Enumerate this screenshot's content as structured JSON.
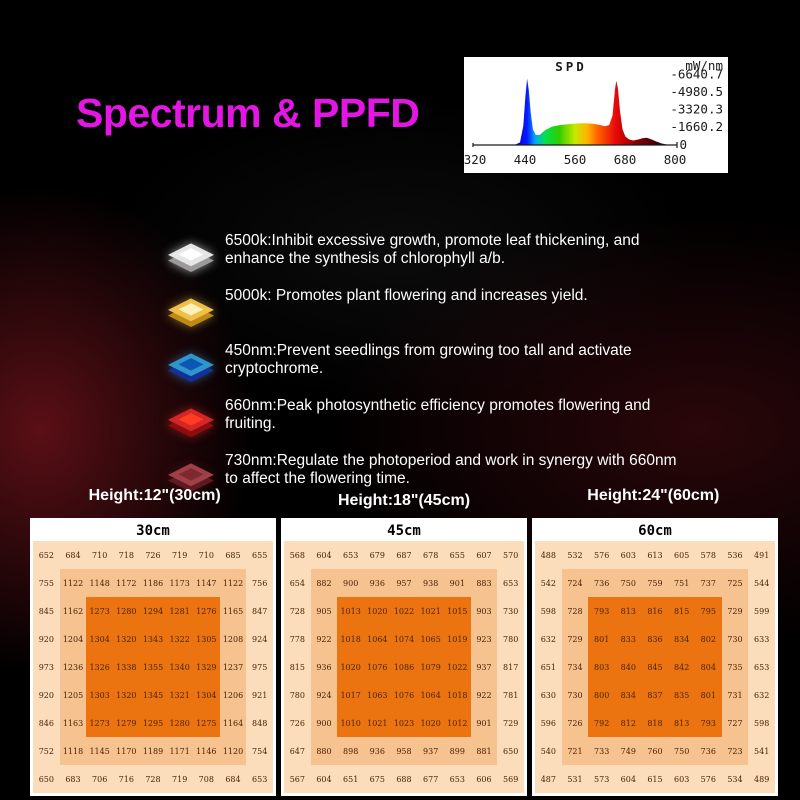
{
  "page": {
    "title": "Spectrum & PPFD",
    "title_color": "#e316e3",
    "background_color": "#000000",
    "glow_color": "#961a24"
  },
  "spd_chart": {
    "type": "area",
    "title": "SPD",
    "unit_label": "mW/nm",
    "y_tick_labels": [
      "-6640.7",
      "-4980.5",
      "-3320.3",
      "-1660.2",
      "0"
    ],
    "x_tick_labels": [
      "320",
      "440",
      "560",
      "680",
      "800"
    ],
    "x_range_nm": [
      320,
      800
    ],
    "y_range_mw_nm": [
      0,
      6640.7
    ],
    "curve_points_nm_mw": [
      [
        415,
        0
      ],
      [
        428,
        250
      ],
      [
        436,
        1800
      ],
      [
        441,
        4600
      ],
      [
        445,
        6300
      ],
      [
        449,
        5200
      ],
      [
        454,
        3000
      ],
      [
        459,
        1500
      ],
      [
        466,
        950
      ],
      [
        475,
        950
      ],
      [
        488,
        1400
      ],
      [
        505,
        1750
      ],
      [
        525,
        1900
      ],
      [
        545,
        1980
      ],
      [
        565,
        2050
      ],
      [
        585,
        2060
      ],
      [
        605,
        2000
      ],
      [
        620,
        1900
      ],
      [
        632,
        1780
      ],
      [
        642,
        1900
      ],
      [
        650,
        2800
      ],
      [
        656,
        5300
      ],
      [
        659,
        6100
      ],
      [
        663,
        5400
      ],
      [
        668,
        3200
      ],
      [
        674,
        1500
      ],
      [
        681,
        800
      ],
      [
        690,
        520
      ],
      [
        700,
        430
      ],
      [
        712,
        520
      ],
      [
        722,
        640
      ],
      [
        732,
        680
      ],
      [
        742,
        560
      ],
      [
        755,
        330
      ],
      [
        768,
        140
      ],
      [
        780,
        50
      ],
      [
        790,
        0
      ]
    ],
    "gradient_stops": [
      [
        0.19,
        "#0000c0"
      ],
      [
        0.26,
        "#0818ff"
      ],
      [
        0.3,
        "#00a8ff"
      ],
      [
        0.35,
        "#00e050"
      ],
      [
        0.42,
        "#30cc00"
      ],
      [
        0.5,
        "#c8e800"
      ],
      [
        0.56,
        "#ffb400"
      ],
      [
        0.62,
        "#ff5a00"
      ],
      [
        0.7,
        "#e80c0c"
      ],
      [
        0.75,
        "#c00000"
      ],
      [
        0.83,
        "#700008"
      ],
      [
        0.95,
        "#2a0000"
      ]
    ]
  },
  "bullets": [
    {
      "icon": "led-chip-6500k-icon",
      "chip_top": "#e6e6e6",
      "chip_side": "#9a9a9a",
      "chip_inner": "#ffffff",
      "glow": "#ffffff99",
      "text": "6500k:Inhibit excessive growth, promote leaf thickening, and enhance the synthesis of chlorophyll a/b."
    },
    {
      "icon": "led-chip-5000k-icon",
      "chip_top": "#eec04a",
      "chip_side": "#c08a18",
      "chip_inner": "#fdf0b8",
      "glow": "#ffd75080",
      "text": "5000k: Promotes plant flowering and increases yield."
    },
    {
      "icon": "led-chip-450nm-icon",
      "chip_top": "#2f95cc",
      "chip_side": "#16309a",
      "chip_inner": "#0d57b4",
      "glow": "#3b9fe080",
      "text": "450nm:Prevent seedlings from growing too tall and activate cryptochrome."
    },
    {
      "icon": "led-chip-660nm-icon",
      "chip_top": "#d42626",
      "chip_side": "#8e0d0d",
      "chip_inner": "#ff3b22",
      "glow": "#ff303080",
      "text": "660nm:Peak photosynthetic efficiency promotes flowering and fruiting."
    },
    {
      "icon": "led-chip-730nm-icon",
      "chip_top": "#9e4046",
      "chip_side": "#5e1a20",
      "chip_inner": "#7e2830",
      "glow": "#a0303040",
      "text": "730nm:Regulate the photoperiod and work in synergy with 660nm to affect the flowering time."
    }
  ],
  "ppfd": {
    "height_labels": [
      "Height:12\"(30cm)",
      "Height:18\"(45cm)",
      "Height:24\"(60cm)"
    ],
    "zone_colors": {
      "outer": "#fbdcbb",
      "middle": "#f6c28f",
      "center": "#eb7410"
    },
    "tables": [
      {
        "header": "30cm",
        "values": [
          [
            652,
            684,
            710,
            718,
            726,
            719,
            710,
            685,
            655
          ],
          [
            755,
            1122,
            1148,
            1172,
            1186,
            1173,
            1147,
            1122,
            756
          ],
          [
            845,
            1162,
            1273,
            1280,
            1294,
            1281,
            1276,
            1165,
            847
          ],
          [
            920,
            1204,
            1304,
            1320,
            1343,
            1322,
            1305,
            1208,
            924
          ],
          [
            973,
            1236,
            1326,
            1338,
            1355,
            1340,
            1329,
            1237,
            975
          ],
          [
            920,
            1205,
            1303,
            1320,
            1345,
            1321,
            1304,
            1206,
            921
          ],
          [
            846,
            1163,
            1273,
            1279,
            1295,
            1280,
            1275,
            1164,
            848
          ],
          [
            752,
            1118,
            1145,
            1170,
            1189,
            1171,
            1146,
            1120,
            754
          ],
          [
            650,
            683,
            706,
            716,
            728,
            719,
            708,
            684,
            653
          ]
        ]
      },
      {
        "header": "45cm",
        "values": [
          [
            568,
            604,
            653,
            679,
            687,
            678,
            655,
            607,
            570
          ],
          [
            654,
            882,
            900,
            936,
            957,
            938,
            901,
            883,
            653
          ],
          [
            728,
            905,
            1013,
            1020,
            1022,
            1021,
            1015,
            903,
            730
          ],
          [
            778,
            922,
            1018,
            1064,
            1074,
            1065,
            1019,
            923,
            780
          ],
          [
            815,
            936,
            1020,
            1076,
            1086,
            1079,
            1022,
            937,
            817
          ],
          [
            780,
            924,
            1017,
            1063,
            1076,
            1064,
            1018,
            922,
            781
          ],
          [
            726,
            900,
            1010,
            1021,
            1023,
            1020,
            1012,
            901,
            729
          ],
          [
            647,
            880,
            898,
            936,
            958,
            937,
            899,
            881,
            650
          ],
          [
            567,
            604,
            651,
            675,
            688,
            677,
            653,
            606,
            569
          ]
        ]
      },
      {
        "header": "60cm",
        "values": [
          [
            488,
            532,
            576,
            603,
            613,
            605,
            578,
            536,
            491
          ],
          [
            542,
            724,
            736,
            750,
            759,
            751,
            737,
            725,
            544
          ],
          [
            598,
            728,
            793,
            813,
            816,
            815,
            795,
            729,
            599
          ],
          [
            632,
            729,
            801,
            833,
            836,
            834,
            802,
            730,
            633
          ],
          [
            651,
            734,
            803,
            840,
            845,
            842,
            804,
            735,
            653
          ],
          [
            630,
            730,
            800,
            834,
            837,
            835,
            801,
            731,
            632
          ],
          [
            596,
            726,
            792,
            812,
            818,
            813,
            793,
            727,
            598
          ],
          [
            540,
            721,
            733,
            749,
            760,
            750,
            736,
            723,
            541
          ],
          [
            487,
            531,
            573,
            604,
            615,
            603,
            576,
            534,
            489
          ]
        ]
      }
    ]
  }
}
